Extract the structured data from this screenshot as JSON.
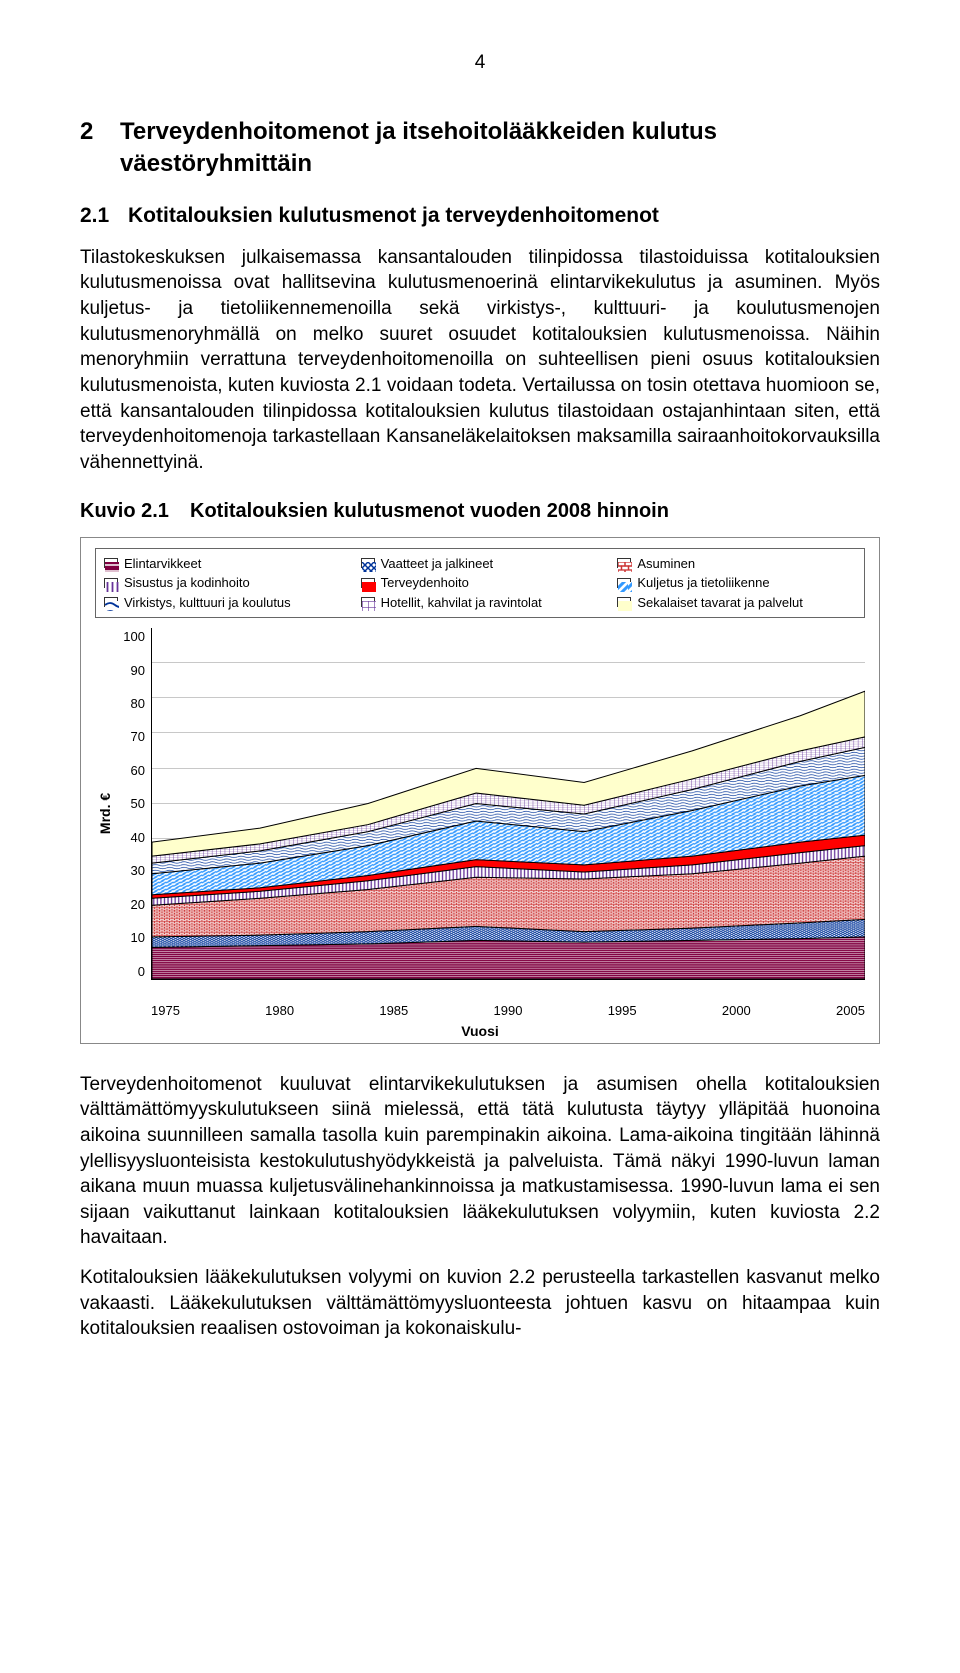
{
  "page_number": "4",
  "heading2": {
    "number": "2",
    "text": "Terveydenhoitomenot ja itsehoitolääkkeiden kulutus väestöryhmittäin"
  },
  "heading3": {
    "number": "2.1",
    "text": "Kotitalouksien kulutusmenot ja terveydenhoitomenot"
  },
  "para1": "Tilastokeskuksen julkaisemassa kansantalouden tilinpidossa tilastoiduissa kotitalouksien kulutusmenoissa ovat hallitsevina kulutusmenoerinä elintarvikekulutus ja asuminen. Myös kuljetus- ja tietoliikennemenoilla sekä virkistys-, kulttuuri- ja koulutusmenojen kulutusmenoryhmällä on melko suuret osuudet kotitalouksien kulutusmenoissa. Näihin menoryhmiin verrattuna terveydenhoitomenoilla on suhteellisen pieni osuus kotitalouksien kulutusmenoista, kuten kuviosta 2.1 voidaan todeta. Vertailussa on tosin otettava huomioon se, että kansantalouden tilinpidossa kotitalouksien kulutus tilastoidaan ostajanhintaan siten, että terveydenhoitomenoja tarkastellaan Kansaneläkelaitoksen maksamilla sairaanhoitokorvauksilla vähennettyinä.",
  "figure": {
    "label": "Kuvio 2.1",
    "title": "Kotitalouksien kulutusmenot vuoden 2008 hinnoin",
    "type": "stacked-area",
    "x_label": "Vuosi",
    "y_label": "Mrd. €",
    "x_ticks": [
      "1975",
      "1980",
      "1985",
      "1990",
      "1995",
      "2000",
      "2005"
    ],
    "y_ticks": [
      "100",
      "90",
      "80",
      "70",
      "60",
      "50",
      "40",
      "30",
      "20",
      "10",
      "0"
    ],
    "ylim": [
      0,
      100
    ],
    "xlim": [
      1975,
      2008
    ],
    "grid_color": "#c8c8c8",
    "border_color": "#888888",
    "legend": [
      {
        "label": "Elintarvikkeet",
        "color": "#800040",
        "pattern": "hlines"
      },
      {
        "label": "Vaatteet ja jalkineet",
        "color": "#003399",
        "pattern": "cross"
      },
      {
        "label": "Asuminen",
        "color": "#cc3333",
        "pattern": "brick"
      },
      {
        "label": "Sisustus ja kodinhoito",
        "color": "#663399",
        "pattern": "vlines"
      },
      {
        "label": "Terveydenhoito",
        "color": "#ff0000",
        "pattern": "solid"
      },
      {
        "label": "Kuljetus ja tietoliikenne",
        "color": "#3399ff",
        "pattern": "diag"
      },
      {
        "label": "Virkistys, kulttuuri ja koulutus",
        "color": "#003399",
        "pattern": "hwave"
      },
      {
        "label": "Hotellit, kahvilat ja ravintolat",
        "color": "#663399",
        "pattern": "grid"
      },
      {
        "label": "Sekalaiset tavarat ja palvelut",
        "color": "#ffffcc",
        "pattern": "solid"
      }
    ],
    "x_values": [
      1975,
      1980,
      1985,
      1990,
      1995,
      2000,
      2005,
      2008
    ],
    "stacks": [
      {
        "key": "elintarvikkeet",
        "cum": [
          9,
          9.5,
          10,
          11,
          10.5,
          11,
          11.5,
          12
        ]
      },
      {
        "key": "vaatteet",
        "cum": [
          12,
          12.5,
          13.5,
          15,
          13.5,
          14.5,
          16,
          17
        ]
      },
      {
        "key": "asuminen",
        "cum": [
          21,
          23,
          25.5,
          29,
          28.5,
          30,
          33,
          35
        ]
      },
      {
        "key": "sisustus",
        "cum": [
          23,
          25,
          28,
          32,
          30.5,
          32.5,
          36,
          38
        ]
      },
      {
        "key": "terveydenhoito",
        "cum": [
          24,
          26,
          29.5,
          34,
          32.5,
          35,
          39,
          41
        ]
      },
      {
        "key": "kuljetus",
        "cum": [
          30,
          33,
          38,
          45,
          42,
          48,
          55,
          58
        ]
      },
      {
        "key": "virkistys",
        "cum": [
          33,
          36.5,
          42,
          50,
          47,
          54,
          62,
          66
        ]
      },
      {
        "key": "hotellit",
        "cum": [
          35,
          38.5,
          44,
          53,
          49.5,
          57,
          65,
          69
        ]
      },
      {
        "key": "sekalaiset",
        "cum": [
          39,
          43,
          50,
          60,
          56,
          65,
          75,
          82
        ]
      }
    ]
  },
  "para2": "Terveydenhoitomenot kuuluvat elintarvikekulutuksen ja asumisen ohella kotitalouksien välttämättömyyskulutukseen siinä mielessä, että tätä kulutusta täytyy ylläpitää huonoina aikoina suunnilleen samalla tasolla kuin parempinakin aikoina. Lama-aikoina tingitään lähinnä ylellisyysluonteisista kestokulutushyödykkeistä ja palveluista. Tämä näkyi 1990-luvun laman aikana muun muassa kuljetusvälinehankinnoissa ja matkustamisessa. 1990-luvun lama ei sen sijaan vaikuttanut lainkaan kotitalouksien lääkekulutuksen volyymiin, kuten kuviosta 2.2 havaitaan.",
  "para3": "Kotitalouksien lääkekulutuksen volyymi on kuvion 2.2 perusteella tarkastellen kasvanut melko vakaasti. Lääkekulutuksen välttämättömyysluonteesta johtuen kasvu on hitaampaa kuin kotitalouksien reaalisen ostovoiman ja kokonaiskulu-",
  "colors": {
    "text": "#000000",
    "bg": "#ffffff"
  }
}
